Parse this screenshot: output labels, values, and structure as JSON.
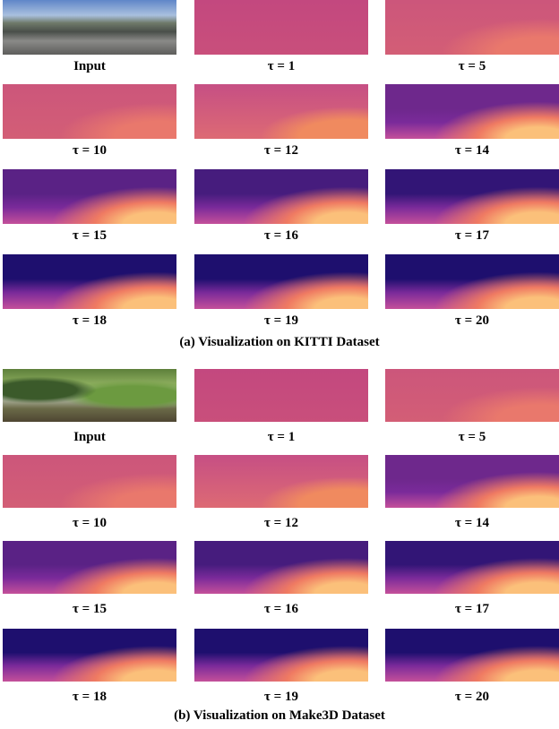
{
  "panels": [
    {
      "caption": "(a) Visualization on KITTI Dataset",
      "cells": [
        "Input",
        "τ = 1",
        "τ = 5",
        "τ = 10",
        "τ = 12",
        "τ = 14",
        "τ = 15",
        "τ = 16",
        "τ = 17",
        "τ = 18",
        "τ = 19",
        "τ = 20"
      ]
    },
    {
      "caption": "(b) Visualization on Make3D Dataset",
      "cells": [
        "Input",
        "τ = 1",
        "τ = 5",
        "τ = 10",
        "τ = 12",
        "τ = 14",
        "τ = 15",
        "τ = 16",
        "τ = 17",
        "τ = 18",
        "τ = 19",
        "τ = 20"
      ]
    }
  ]
}
